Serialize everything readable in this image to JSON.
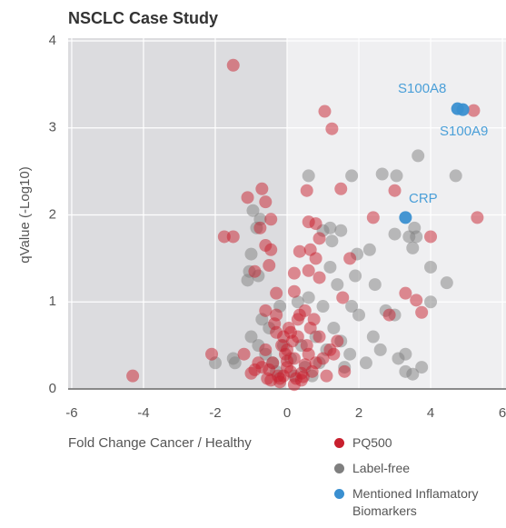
{
  "chart_data": {
    "type": "scatter",
    "title": "NSCLC Case Study",
    "xlabel": "Fold Change Cancer / Healthy",
    "ylabel": "qValue (-Log10)",
    "xlim": [
      -6.1,
      6.1
    ],
    "ylim": [
      0,
      4
    ],
    "xticks": [
      -6,
      -4,
      -2,
      0,
      2,
      4,
      6
    ],
    "yticks": [
      0,
      1,
      2,
      3,
      4
    ],
    "grid": true,
    "annotations": [
      "S100A8",
      "S100A9",
      "CRP"
    ],
    "series": [
      {
        "name": "Label-free",
        "color": "#7f7f7f",
        "x": [
          0.6,
          1.8,
          2.65,
          3.05,
          3.65,
          4.7,
          -0.95,
          -0.75,
          1.2,
          1.5,
          1.0,
          2.3,
          3.0,
          3.4,
          3.6,
          3.55,
          3.5,
          1.25,
          1.95,
          -0.85,
          -1.0,
          -0.8,
          -1.05,
          -1.1,
          1.9,
          2.45,
          2.75,
          3.0,
          1.2,
          1.4,
          4.0,
          4.0,
          4.45,
          1.8,
          2.0,
          2.6,
          3.1,
          3.3,
          3.5,
          3.75,
          3.3,
          2.2,
          1.6,
          1.75,
          -2.0,
          -1.5,
          -1.45,
          -0.8,
          -1.0,
          -0.5,
          0.3,
          0.6,
          1.0,
          -0.2,
          -0.6,
          -0.4,
          0.4,
          0.8,
          1.1,
          1.3,
          -0.3,
          0.1,
          0.5,
          0.9,
          -0.7,
          1.5,
          2.4,
          0.2,
          -0.1,
          0.7
        ],
        "values": [
          2.45,
          2.45,
          2.47,
          2.45,
          2.68,
          2.45,
          2.05,
          1.95,
          1.85,
          1.82,
          1.82,
          1.6,
          1.78,
          1.75,
          1.75,
          1.85,
          1.62,
          1.7,
          1.55,
          1.85,
          1.55,
          1.3,
          1.35,
          1.25,
          1.3,
          1.2,
          0.9,
          0.85,
          1.4,
          1.2,
          1.4,
          1.0,
          1.22,
          0.95,
          0.85,
          0.45,
          0.35,
          0.4,
          0.17,
          0.25,
          0.2,
          0.3,
          0.25,
          0.4,
          0.3,
          0.35,
          0.3,
          0.5,
          0.6,
          0.7,
          1.0,
          1.05,
          0.95,
          0.95,
          0.4,
          0.3,
          0.5,
          0.6,
          0.45,
          0.7,
          0.2,
          0.35,
          0.25,
          0.3,
          0.8,
          0.55,
          0.6,
          0.15,
          0.5,
          0.15
        ]
      },
      {
        "name": "PQ500",
        "color": "#c8202e",
        "x": [
          -1.5,
          1.05,
          1.25,
          5.2,
          5.3,
          -1.75,
          -1.5,
          -4.3,
          -2.1,
          2.4,
          4.0,
          3.6,
          3.75,
          3.3,
          2.85,
          -0.7,
          -1.1,
          0.55,
          1.5,
          3.0,
          -0.6,
          -0.45,
          0.6,
          0.8,
          -0.75,
          -0.6,
          -0.45,
          0.35,
          0.65,
          0.9,
          0.8,
          1.75,
          -0.9,
          -0.5,
          0.2,
          0.6,
          0.9,
          -0.3,
          0.2,
          1.55,
          -0.6,
          -0.3,
          0.3,
          -0.1,
          0.1,
          0.0,
          -0.2,
          0.2,
          0.4,
          -0.4,
          0.5,
          -0.5,
          0.6,
          -0.6,
          0.15,
          -0.15,
          0.3,
          -0.3,
          0.05,
          -0.05,
          0.25,
          -0.25,
          0.45,
          -0.45,
          0.7,
          -0.7,
          0.8,
          1.0,
          1.2,
          1.4,
          -0.9,
          0.35,
          -0.35,
          0.55,
          0.0,
          0.1,
          -0.1,
          0.65,
          0.9,
          -0.8,
          1.1,
          -1.2,
          0.0,
          0.2,
          -0.2,
          0.4,
          0.75,
          -0.55,
          1.3,
          0.5,
          1.6,
          -1.0
        ],
        "values": [
          3.72,
          3.19,
          2.99,
          3.2,
          1.97,
          1.75,
          1.75,
          0.15,
          0.4,
          1.97,
          1.75,
          1.02,
          0.88,
          1.1,
          0.85,
          2.3,
          2.2,
          2.28,
          2.3,
          2.28,
          2.15,
          1.95,
          1.92,
          1.9,
          1.85,
          1.65,
          1.6,
          1.58,
          1.6,
          1.73,
          1.5,
          1.5,
          1.35,
          1.42,
          1.33,
          1.36,
          1.28,
          1.1,
          1.12,
          1.05,
          0.9,
          0.85,
          0.8,
          0.15,
          0.2,
          0.25,
          0.12,
          0.35,
          0.18,
          0.3,
          0.28,
          0.22,
          0.4,
          0.45,
          0.55,
          0.5,
          0.6,
          0.65,
          0.7,
          0.4,
          0.12,
          0.15,
          0.14,
          0.1,
          0.2,
          0.25,
          0.3,
          0.35,
          0.45,
          0.55,
          0.22,
          0.85,
          0.75,
          0.5,
          0.45,
          0.65,
          0.6,
          0.7,
          0.6,
          0.3,
          0.15,
          0.4,
          0.32,
          0.05,
          0.08,
          0.1,
          0.8,
          0.12,
          0.4,
          0.9,
          0.2,
          0.18
        ]
      },
      {
        "name": "Mentioned Inflamatory Biomarkers",
        "color": "#3a8fd0",
        "x": [
          4.75,
          4.9,
          3.3
        ],
        "values": [
          3.22,
          3.21,
          1.97
        ]
      }
    ]
  }
}
